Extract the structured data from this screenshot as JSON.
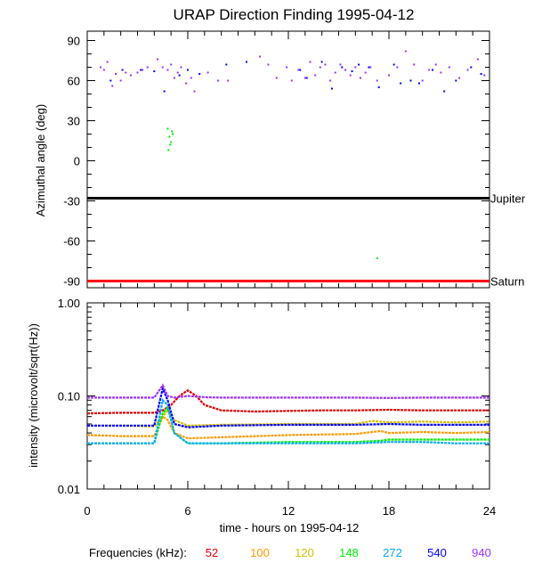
{
  "title": "URAP Direction Finding  1995-04-12",
  "colors": {
    "jupiter_line": "#000000",
    "saturn_line": "#ff0000",
    "series": {
      "52": "#e00000",
      "100": "#ff9900",
      "120": "#d0c000",
      "148": "#00ee00",
      "272": "#00a8ff",
      "540": "#0000ff",
      "940": "#9933ff"
    }
  },
  "chart_data": [
    {
      "type": "scatter",
      "panel": "direction",
      "ylabel": "Azimuthal angle (deg)",
      "xlim": [
        0,
        24
      ],
      "ylim": [
        -95,
        97
      ],
      "y_ticks": [
        90,
        60,
        30,
        0,
        -30,
        -60,
        -90
      ],
      "y_tick_labels": [
        "90",
        "60",
        "30",
        "0",
        "-30",
        "-60",
        "-90"
      ],
      "reference_lines": [
        {
          "label": "Jupiter",
          "y": -28
        },
        {
          "label": "Saturn",
          "y": -90
        }
      ],
      "series": [
        {
          "freq": "940",
          "x": [
            0.8,
            1.0,
            1.2,
            1.5,
            1.7,
            2.0,
            2.3,
            2.6,
            3.0,
            3.3,
            3.6,
            4.2,
            4.5,
            4.8,
            5.0,
            5.2,
            5.4,
            5.6,
            5.9,
            6.2,
            6.4,
            7.2,
            7.8,
            8.4,
            10.3,
            10.8,
            11.3,
            11.9,
            12.2,
            12.6,
            13.0,
            13.3,
            13.6,
            13.9,
            14.2,
            14.5,
            14.8,
            15.1,
            15.4,
            15.7,
            16.0,
            16.3,
            16.6,
            16.9,
            17.3,
            18.0,
            18.5,
            19.0,
            19.5,
            20.0,
            20.4,
            20.8,
            21.1,
            21.6,
            22.2,
            22.7,
            23.3,
            23.7
          ],
          "y": [
            70,
            68,
            74,
            56,
            65,
            60,
            66,
            64,
            66,
            68,
            70,
            76,
            70,
            68,
            72,
            62,
            66,
            70,
            58,
            62,
            52,
            66,
            60,
            60,
            78,
            72,
            62,
            70,
            60,
            68,
            62,
            74,
            64,
            70,
            72,
            60,
            66,
            72,
            68,
            64,
            70,
            62,
            66,
            70,
            60,
            64,
            70,
            82,
            72,
            60,
            68,
            72,
            66,
            70,
            62,
            68,
            76,
            64
          ]
        },
        {
          "freq": "540",
          "x": [
            1.4,
            2.1,
            3.2,
            4.0,
            4.6,
            5.5,
            6.0,
            6.7,
            8.3,
            9.5,
            12.7,
            13.1,
            14.0,
            14.6,
            15.2,
            15.8,
            16.2,
            16.8,
            17.4,
            18.3,
            18.7,
            19.3,
            19.8,
            20.6,
            21.3,
            22.0,
            22.9,
            23.5
          ],
          "y": [
            60,
            68,
            68,
            67,
            52,
            64,
            68,
            65,
            72,
            74,
            68,
            62,
            74,
            54,
            70,
            67,
            72,
            70,
            55,
            72,
            58,
            60,
            58,
            68,
            52,
            60,
            70,
            65
          ]
        },
        {
          "freq": "148",
          "x": [
            4.8,
            4.9,
            5.0,
            5.1,
            4.85,
            4.95,
            5.05,
            17.3
          ],
          "y": [
            24,
            18,
            14,
            20,
            8,
            12,
            22,
            -73
          ]
        }
      ]
    },
    {
      "type": "line",
      "panel": "intensity",
      "ylabel": "intensity (microvolt/sqrt(Hz))",
      "xlabel": "time - hours on 1995-04-12",
      "scale": "log",
      "xlim": [
        0,
        24
      ],
      "ylim": [
        0.01,
        1.0
      ],
      "y_ticks": [
        1.0,
        0.1,
        0.01
      ],
      "y_tick_labels": [
        "1.00",
        "0.10",
        "0.01"
      ],
      "x_ticks": [
        0,
        6,
        12,
        18,
        24
      ],
      "x_tick_labels": [
        "0",
        "6",
        "12",
        "18",
        "24"
      ],
      "legend_label": "Frequencies (kHz):",
      "series": [
        {
          "name": "52",
          "x": [
            0,
            2,
            4,
            4.5,
            5,
            5.5,
            6,
            6.5,
            7,
            8,
            10,
            12,
            14,
            16,
            18,
            20,
            22,
            24
          ],
          "values": [
            0.065,
            0.066,
            0.066,
            0.07,
            0.08,
            0.1,
            0.115,
            0.1,
            0.08,
            0.07,
            0.068,
            0.069,
            0.07,
            0.07,
            0.071,
            0.07,
            0.07,
            0.07
          ]
        },
        {
          "name": "100",
          "x": [
            0,
            2,
            4,
            4.5,
            4.8,
            5.2,
            6,
            8,
            12,
            16,
            17.5,
            18,
            20,
            22,
            24
          ],
          "values": [
            0.038,
            0.037,
            0.037,
            0.06,
            0.055,
            0.04,
            0.035,
            0.036,
            0.038,
            0.039,
            0.042,
            0.04,
            0.041,
            0.04,
            0.041
          ]
        },
        {
          "name": "120",
          "x": [
            0,
            2,
            4,
            4.5,
            4.8,
            5.2,
            6,
            8,
            12,
            14,
            16,
            17,
            18,
            20,
            22,
            24
          ],
          "values": [
            0.048,
            0.048,
            0.047,
            0.06,
            0.07,
            0.055,
            0.048,
            0.049,
            0.05,
            0.05,
            0.05,
            0.054,
            0.052,
            0.053,
            0.052,
            0.053
          ]
        },
        {
          "name": "148",
          "x": [
            0,
            2,
            4,
            4.5,
            4.8,
            5.2,
            6,
            8,
            12,
            16,
            17.5,
            18,
            20,
            22,
            24
          ],
          "values": [
            0.031,
            0.031,
            0.031,
            0.065,
            0.075,
            0.04,
            0.031,
            0.031,
            0.032,
            0.032,
            0.033,
            0.034,
            0.034,
            0.034,
            0.034
          ]
        },
        {
          "name": "272",
          "x": [
            0,
            2,
            4,
            4.5,
            4.8,
            5.2,
            6,
            8,
            12,
            16,
            18,
            20,
            22,
            24
          ],
          "values": [
            0.031,
            0.031,
            0.031,
            0.09,
            0.08,
            0.04,
            0.031,
            0.031,
            0.031,
            0.031,
            0.032,
            0.032,
            0.031,
            0.031
          ]
        },
        {
          "name": "540",
          "x": [
            0,
            2,
            4,
            4.5,
            4.8,
            5.2,
            6,
            8,
            12,
            16,
            18,
            20,
            22,
            24
          ],
          "values": [
            0.048,
            0.048,
            0.048,
            0.12,
            0.09,
            0.05,
            0.046,
            0.048,
            0.049,
            0.049,
            0.05,
            0.049,
            0.049,
            0.049
          ]
        },
        {
          "name": "940",
          "x": [
            0,
            2,
            4,
            4.5,
            4.8,
            5.2,
            6,
            7,
            8,
            12,
            16,
            18,
            20,
            22,
            24
          ],
          "values": [
            0.096,
            0.096,
            0.096,
            0.13,
            0.1,
            0.096,
            0.1,
            0.097,
            0.096,
            0.096,
            0.096,
            0.095,
            0.096,
            0.096,
            0.096
          ]
        }
      ]
    }
  ]
}
